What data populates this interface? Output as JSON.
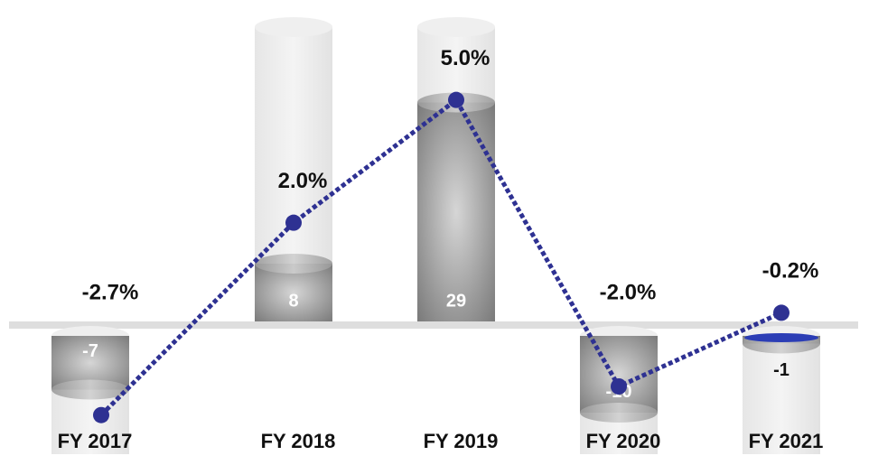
{
  "chart_data": {
    "type": "bar",
    "categories": [
      "FY 2017",
      "FY 2018",
      "FY 2019",
      "FY 2020",
      "FY 2021"
    ],
    "series": [
      {
        "values": [
          -7,
          8,
          29,
          -10,
          -1
        ],
        "color": "#8c8c8c"
      },
      {
        "type": "line",
        "axis": "y2",
        "values": [
          -2.7,
          2.0,
          5.0,
          -2.0,
          -0.2
        ],
        "value_labels": [
          "-2.7%",
          "2.0%",
          "5.0%",
          "-2.0%",
          "-0.2%"
        ],
        "color": "#2e3192"
      }
    ],
    "ylim": [
      -16,
      40
    ],
    "y2lim": [
      -3.5,
      7
    ]
  }
}
